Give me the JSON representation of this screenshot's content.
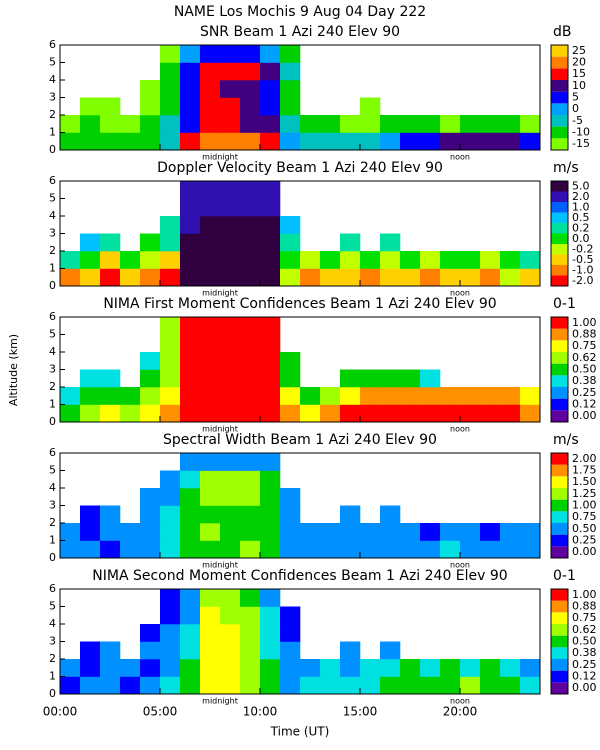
{
  "title": "NAME Los Mochis    9 Aug 04 Day 222",
  "xlabel": "Time (UT)",
  "ylabel": "Altitude (km)",
  "chart_data": [
    {
      "type": "heatmap",
      "title": "SNR Beam 1 Azi 240 Elev 90",
      "colorbar_label": "dB",
      "levels": [
        -15,
        -10,
        -5,
        0,
        5,
        10,
        15,
        20,
        25
      ],
      "colors": [
        "#80ff00",
        "#00d000",
        "#00c0c0",
        "#00a0ff",
        "#0000ff",
        "#400080",
        "#ff0000",
        "#ff8000",
        "#ffd000"
      ],
      "xlim": [
        0,
        24
      ],
      "xticks": [
        0,
        5,
        10,
        15,
        20
      ],
      "ylim": [
        0,
        6
      ],
      "yticks": [
        0,
        1,
        2,
        3,
        4,
        5,
        6
      ],
      "annotations": [
        {
          "text": "midnight",
          "x": 8
        },
        {
          "text": "noon",
          "x": 20
        }
      ],
      "x": [
        0.5,
        1.5,
        2.5,
        3.5,
        4.5,
        5.5,
        6.5,
        7.5,
        8.5,
        9.5,
        10.5,
        11.5,
        12.5,
        13.5,
        14.5,
        15.5,
        16.5,
        17.5,
        18.5,
        19.5,
        20.5,
        21.5,
        22.5,
        23.5
      ],
      "y": [
        0.5,
        1.5,
        2.5,
        3.5,
        4.5,
        5.5
      ],
      "z": [
        [
          -10,
          -10,
          -10,
          -10,
          -10,
          -5,
          15,
          20,
          20,
          20,
          15,
          0,
          -5,
          -5,
          -5,
          -5,
          0,
          5,
          5,
          10,
          10,
          10,
          10,
          5
        ],
        [
          -12,
          -10,
          -12,
          -12,
          -10,
          -5,
          5,
          15,
          15,
          10,
          10,
          -5,
          -10,
          -10,
          -12,
          -12,
          -10,
          -10,
          -10,
          -12,
          -10,
          -10,
          -10,
          -12
        ],
        [
          null,
          -15,
          -15,
          null,
          -12,
          -10,
          5,
          15,
          15,
          10,
          5,
          -10,
          null,
          null,
          null,
          -15,
          null,
          null,
          null,
          null,
          null,
          null,
          null,
          null
        ],
        [
          null,
          null,
          null,
          null,
          -15,
          -10,
          5,
          15,
          10,
          10,
          5,
          -10,
          null,
          null,
          null,
          null,
          null,
          null,
          null,
          null,
          null,
          null,
          null,
          null
        ],
        [
          null,
          null,
          null,
          null,
          null,
          -10,
          5,
          15,
          15,
          15,
          10,
          -5,
          null,
          null,
          null,
          null,
          null,
          null,
          null,
          null,
          null,
          null,
          null,
          null
        ],
        [
          null,
          null,
          null,
          null,
          null,
          -12,
          0,
          5,
          5,
          5,
          0,
          -10,
          null,
          null,
          null,
          null,
          null,
          null,
          null,
          null,
          null,
          null,
          null,
          null
        ]
      ]
    },
    {
      "type": "heatmap",
      "title": "Doppler Velocity Beam 1 Azi 240 Elev 90",
      "colorbar_label": "m/s",
      "levels": [
        {
          "value": -2,
          "label": "-2.0"
        },
        {
          "value": -1,
          "label": "-1.0"
        },
        -0.5,
        -0.2,
        {
          "value": 0,
          "label": "0.0"
        },
        0.2,
        0.5,
        {
          "value": 1,
          "label": "1.0"
        },
        {
          "value": 2,
          "label": "2.0"
        },
        {
          "value": 5,
          "label": "5.0"
        }
      ],
      "colors": [
        "#ff0000",
        "#ff8000",
        "#ffd000",
        "#c0ff00",
        "#00e000",
        "#00e0a0",
        "#00c0ff",
        "#0060ff",
        "#3010b0",
        "#300040"
      ],
      "xlim": [
        0,
        24
      ],
      "xticks": [
        0,
        5,
        10,
        15,
        20
      ],
      "ylim": [
        0,
        6
      ],
      "yticks": [
        0,
        1,
        2,
        3,
        4,
        5,
        6
      ],
      "annotations": [
        {
          "text": "midnight",
          "x": 8
        },
        {
          "text": "noon",
          "x": 20
        }
      ],
      "x": [
        0.5,
        1.5,
        2.5,
        3.5,
        4.5,
        5.5,
        6.5,
        7.5,
        8.5,
        9.5,
        10.5,
        11.5,
        12.5,
        13.5,
        14.5,
        15.5,
        16.5,
        17.5,
        18.5,
        19.5,
        20.5,
        21.5,
        22.5,
        23.5
      ],
      "y": [
        0.5,
        1.5,
        2.5,
        3.5,
        4.5,
        5.5
      ],
      "z": [
        [
          -1,
          -0.5,
          -2,
          -0.5,
          -1,
          -2,
          5,
          5,
          5,
          5,
          5,
          -0.2,
          -1,
          -0.5,
          -0.5,
          -1,
          -0.5,
          -0.5,
          -1,
          -0.5,
          -0.5,
          -1,
          -0.2,
          -0.5
        ],
        [
          0.2,
          0,
          -0.5,
          0,
          -0.2,
          -0.5,
          5,
          5,
          5,
          5,
          5,
          0,
          -0.2,
          0,
          -0.2,
          0,
          -0.2,
          0,
          -0.2,
          0,
          0,
          -0.2,
          0,
          0.2
        ],
        [
          null,
          0.5,
          0.2,
          null,
          0,
          0.2,
          5,
          5,
          5,
          5,
          5,
          0.2,
          null,
          null,
          0.2,
          null,
          0.2,
          null,
          null,
          null,
          null,
          null,
          null,
          null
        ],
        [
          null,
          null,
          null,
          null,
          null,
          0.2,
          2,
          5,
          5,
          5,
          5,
          0.5,
          null,
          null,
          null,
          null,
          null,
          null,
          null,
          null,
          null,
          null,
          null,
          null
        ],
        [
          null,
          null,
          null,
          null,
          null,
          null,
          2,
          2,
          2,
          2,
          2,
          null,
          null,
          null,
          null,
          null,
          null,
          null,
          null,
          null,
          null,
          null,
          null,
          null
        ],
        [
          null,
          null,
          null,
          null,
          null,
          null,
          2,
          2,
          2,
          2,
          2,
          null,
          null,
          null,
          null,
          null,
          null,
          null,
          null,
          null,
          null,
          null,
          null,
          null
        ]
      ]
    },
    {
      "type": "heatmap",
      "title": "NIMA First Moment Confidences Beam 1 Azi 240 Elev 90",
      "colorbar_label": "0-1",
      "levels": [
        {
          "value": 0,
          "label": "0.00"
        },
        0.12,
        0.25,
        0.38,
        {
          "value": 0.5,
          "label": "0.50"
        },
        0.62,
        0.75,
        0.88,
        {
          "value": 1,
          "label": "1.00"
        }
      ],
      "colors": [
        "#6000a0",
        "#0000ff",
        "#0090ff",
        "#00e0e0",
        "#00d000",
        "#a0ff00",
        "#ffff00",
        "#ff9000",
        "#ff0000"
      ],
      "xlim": [
        0,
        24
      ],
      "xticks": [
        0,
        5,
        10,
        15,
        20
      ],
      "ylim": [
        0,
        6
      ],
      "yticks": [
        0,
        1,
        2,
        3,
        4,
        5,
        6
      ],
      "annotations": [
        {
          "text": "midnight",
          "x": 8
        },
        {
          "text": "noon",
          "x": 20
        }
      ],
      "x": [
        0.5,
        1.5,
        2.5,
        3.5,
        4.5,
        5.5,
        6.5,
        7.5,
        8.5,
        9.5,
        10.5,
        11.5,
        12.5,
        13.5,
        14.5,
        15.5,
        16.5,
        17.5,
        18.5,
        19.5,
        20.5,
        21.5,
        22.5,
        23.5
      ],
      "y": [
        0.5,
        1.5,
        2.5,
        3.5,
        4.5,
        5.5
      ],
      "z": [
        [
          0.5,
          0.62,
          0.75,
          0.62,
          0.75,
          0.88,
          1,
          1,
          1,
          1,
          1,
          0.88,
          0.75,
          0.88,
          1,
          1,
          1,
          1,
          1,
          1,
          1,
          1,
          1,
          0.88
        ],
        [
          0.38,
          0.5,
          0.5,
          0.5,
          0.62,
          0.75,
          1,
          1,
          1,
          1,
          1,
          0.75,
          0.5,
          0.62,
          0.75,
          0.88,
          0.88,
          0.88,
          0.88,
          0.88,
          0.88,
          0.88,
          0.88,
          0.75
        ],
        [
          null,
          0.38,
          0.38,
          null,
          0.5,
          0.62,
          1,
          1,
          1,
          1,
          1,
          0.5,
          null,
          null,
          0.5,
          0.5,
          0.5,
          0.5,
          0.38,
          null,
          null,
          null,
          null,
          null
        ],
        [
          null,
          null,
          null,
          null,
          0.38,
          0.62,
          1,
          1,
          1,
          1,
          1,
          0.5,
          null,
          null,
          null,
          null,
          null,
          null,
          null,
          null,
          null,
          null,
          null,
          null
        ],
        [
          null,
          null,
          null,
          null,
          null,
          0.62,
          1,
          1,
          1,
          1,
          1,
          null,
          null,
          null,
          null,
          null,
          null,
          null,
          null,
          null,
          null,
          null,
          null,
          null
        ],
        [
          null,
          null,
          null,
          null,
          null,
          0.62,
          1,
          1,
          1,
          1,
          1,
          null,
          null,
          null,
          null,
          null,
          null,
          null,
          null,
          null,
          null,
          null,
          null,
          null
        ]
      ]
    },
    {
      "type": "heatmap",
      "title": "Spectral Width Beam 1 Azi 240 Elev 90",
      "colorbar_label": "m/s",
      "levels": [
        {
          "value": 0,
          "label": "0.00"
        },
        0.25,
        {
          "value": 0.5,
          "label": "0.50"
        },
        0.75,
        {
          "value": 1,
          "label": "1.00"
        },
        1.25,
        {
          "value": 1.5,
          "label": "1.50"
        },
        1.75,
        {
          "value": 2,
          "label": "2.00"
        }
      ],
      "colors": [
        "#6000a0",
        "#0000ff",
        "#0090ff",
        "#00e0e0",
        "#00d000",
        "#a0ff00",
        "#ffff00",
        "#ff9000",
        "#ff0000"
      ],
      "xlim": [
        0,
        24
      ],
      "xticks": [
        0,
        5,
        10,
        15,
        20
      ],
      "ylim": [
        0,
        6
      ],
      "yticks": [
        0,
        1,
        2,
        3,
        4,
        5,
        6
      ],
      "annotations": [
        {
          "text": "midnight",
          "x": 8
        },
        {
          "text": "noon",
          "x": 20
        }
      ],
      "x": [
        0.5,
        1.5,
        2.5,
        3.5,
        4.5,
        5.5,
        6.5,
        7.5,
        8.5,
        9.5,
        10.5,
        11.5,
        12.5,
        13.5,
        14.5,
        15.5,
        16.5,
        17.5,
        18.5,
        19.5,
        20.5,
        21.5,
        22.5,
        23.5
      ],
      "y": [
        0.5,
        1.5,
        2.5,
        3.5,
        4.5,
        5.5
      ],
      "z": [
        [
          0.5,
          0.5,
          0.25,
          0.5,
          0.5,
          0.75,
          1,
          1,
          1,
          1.25,
          1,
          0.5,
          0.5,
          0.5,
          0.5,
          0.5,
          0.5,
          0.5,
          0.5,
          0.75,
          0.5,
          0.5,
          0.5,
          0.5
        ],
        [
          0.5,
          0.25,
          0.5,
          0.5,
          0.5,
          0.75,
          1,
          1.25,
          1,
          1,
          1,
          0.5,
          0.5,
          0.5,
          0.5,
          0.5,
          0.5,
          0.5,
          0.25,
          0.5,
          0.5,
          0.25,
          0.5,
          0.5
        ],
        [
          null,
          0.25,
          0.5,
          null,
          0.5,
          0.75,
          1,
          1,
          1,
          1,
          1,
          0.5,
          null,
          null,
          0.5,
          null,
          0.5,
          null,
          null,
          null,
          null,
          null,
          null,
          null
        ],
        [
          null,
          null,
          null,
          null,
          0.5,
          0.5,
          1,
          1.25,
          1.25,
          1.25,
          1,
          0.5,
          null,
          null,
          null,
          null,
          null,
          null,
          null,
          null,
          null,
          null,
          null,
          null
        ],
        [
          null,
          null,
          null,
          null,
          null,
          0.5,
          0.75,
          1.25,
          1.25,
          1.25,
          1,
          null,
          null,
          null,
          null,
          null,
          null,
          null,
          null,
          null,
          null,
          null,
          null,
          null
        ],
        [
          null,
          null,
          null,
          null,
          null,
          null,
          0.5,
          0.5,
          0.5,
          0.5,
          0.5,
          null,
          null,
          null,
          null,
          null,
          null,
          null,
          null,
          null,
          null,
          null,
          null,
          null
        ]
      ]
    },
    {
      "type": "heatmap",
      "title": "NIMA Second Moment Confidences Beam 1 Azi 240 Elev 90",
      "colorbar_label": "0-1",
      "levels": [
        {
          "value": 0,
          "label": "0.00"
        },
        0.12,
        0.25,
        0.38,
        {
          "value": 0.5,
          "label": "0.50"
        },
        0.62,
        0.75,
        0.88,
        {
          "value": 1,
          "label": "1.00"
        }
      ],
      "colors": [
        "#6000a0",
        "#0000ff",
        "#0090ff",
        "#00e0e0",
        "#00d000",
        "#a0ff00",
        "#ffff00",
        "#ff9000",
        "#ff0000"
      ],
      "xlim": [
        0,
        24
      ],
      "xticks": [
        {
          "value": 0,
          "label": "00:00"
        },
        {
          "value": 5,
          "label": "05:00"
        },
        {
          "value": 10,
          "label": "10:00"
        },
        {
          "value": 15,
          "label": "15:00"
        },
        {
          "value": 20,
          "label": "20:00"
        }
      ],
      "ylim": [
        0,
        6
      ],
      "yticks": [
        0,
        1,
        2,
        3,
        4,
        5,
        6
      ],
      "annotations": [
        {
          "text": "midnight",
          "x": 8
        },
        {
          "text": "noon",
          "x": 20
        }
      ],
      "x": [
        0.5,
        1.5,
        2.5,
        3.5,
        4.5,
        5.5,
        6.5,
        7.5,
        8.5,
        9.5,
        10.5,
        11.5,
        12.5,
        13.5,
        14.5,
        15.5,
        16.5,
        17.5,
        18.5,
        19.5,
        20.5,
        21.5,
        22.5,
        23.5
      ],
      "y": [
        0.5,
        1.5,
        2.5,
        3.5,
        4.5,
        5.5
      ],
      "z": [
        [
          0.12,
          0.25,
          0.25,
          0.12,
          0.25,
          0.38,
          0.5,
          0.75,
          0.75,
          0.62,
          0.5,
          0.25,
          0.38,
          0.38,
          0.38,
          0.38,
          0.5,
          0.5,
          0.5,
          0.5,
          0.62,
          0.5,
          0.5,
          0.38
        ],
        [
          0.25,
          0.12,
          0.25,
          0.25,
          0.12,
          0.25,
          0.5,
          0.75,
          0.75,
          0.62,
          0.5,
          0.25,
          0.25,
          0.38,
          0.25,
          0.38,
          0.38,
          0.5,
          0.38,
          0.5,
          0.38,
          0.5,
          0.38,
          0.25
        ],
        [
          null,
          0.12,
          0.25,
          null,
          0.25,
          0.25,
          0.38,
          0.75,
          0.75,
          0.62,
          0.38,
          0.25,
          null,
          null,
          0.25,
          null,
          0.25,
          null,
          null,
          null,
          null,
          null,
          null,
          null
        ],
        [
          null,
          null,
          null,
          null,
          0.12,
          0.25,
          0.38,
          0.75,
          0.75,
          0.62,
          0.38,
          0.12,
          null,
          null,
          null,
          null,
          null,
          null,
          null,
          null,
          null,
          null,
          null,
          null
        ],
        [
          null,
          null,
          null,
          null,
          null,
          0.12,
          0.25,
          0.75,
          0.62,
          0.62,
          0.38,
          0.12,
          null,
          null,
          null,
          null,
          null,
          null,
          null,
          null,
          null,
          null,
          null,
          null
        ],
        [
          null,
          null,
          null,
          null,
          null,
          0.12,
          0.25,
          0.62,
          0.62,
          0.5,
          0.25,
          null,
          null,
          null,
          null,
          null,
          null,
          null,
          null,
          null,
          null,
          null,
          null,
          null
        ]
      ]
    }
  ]
}
